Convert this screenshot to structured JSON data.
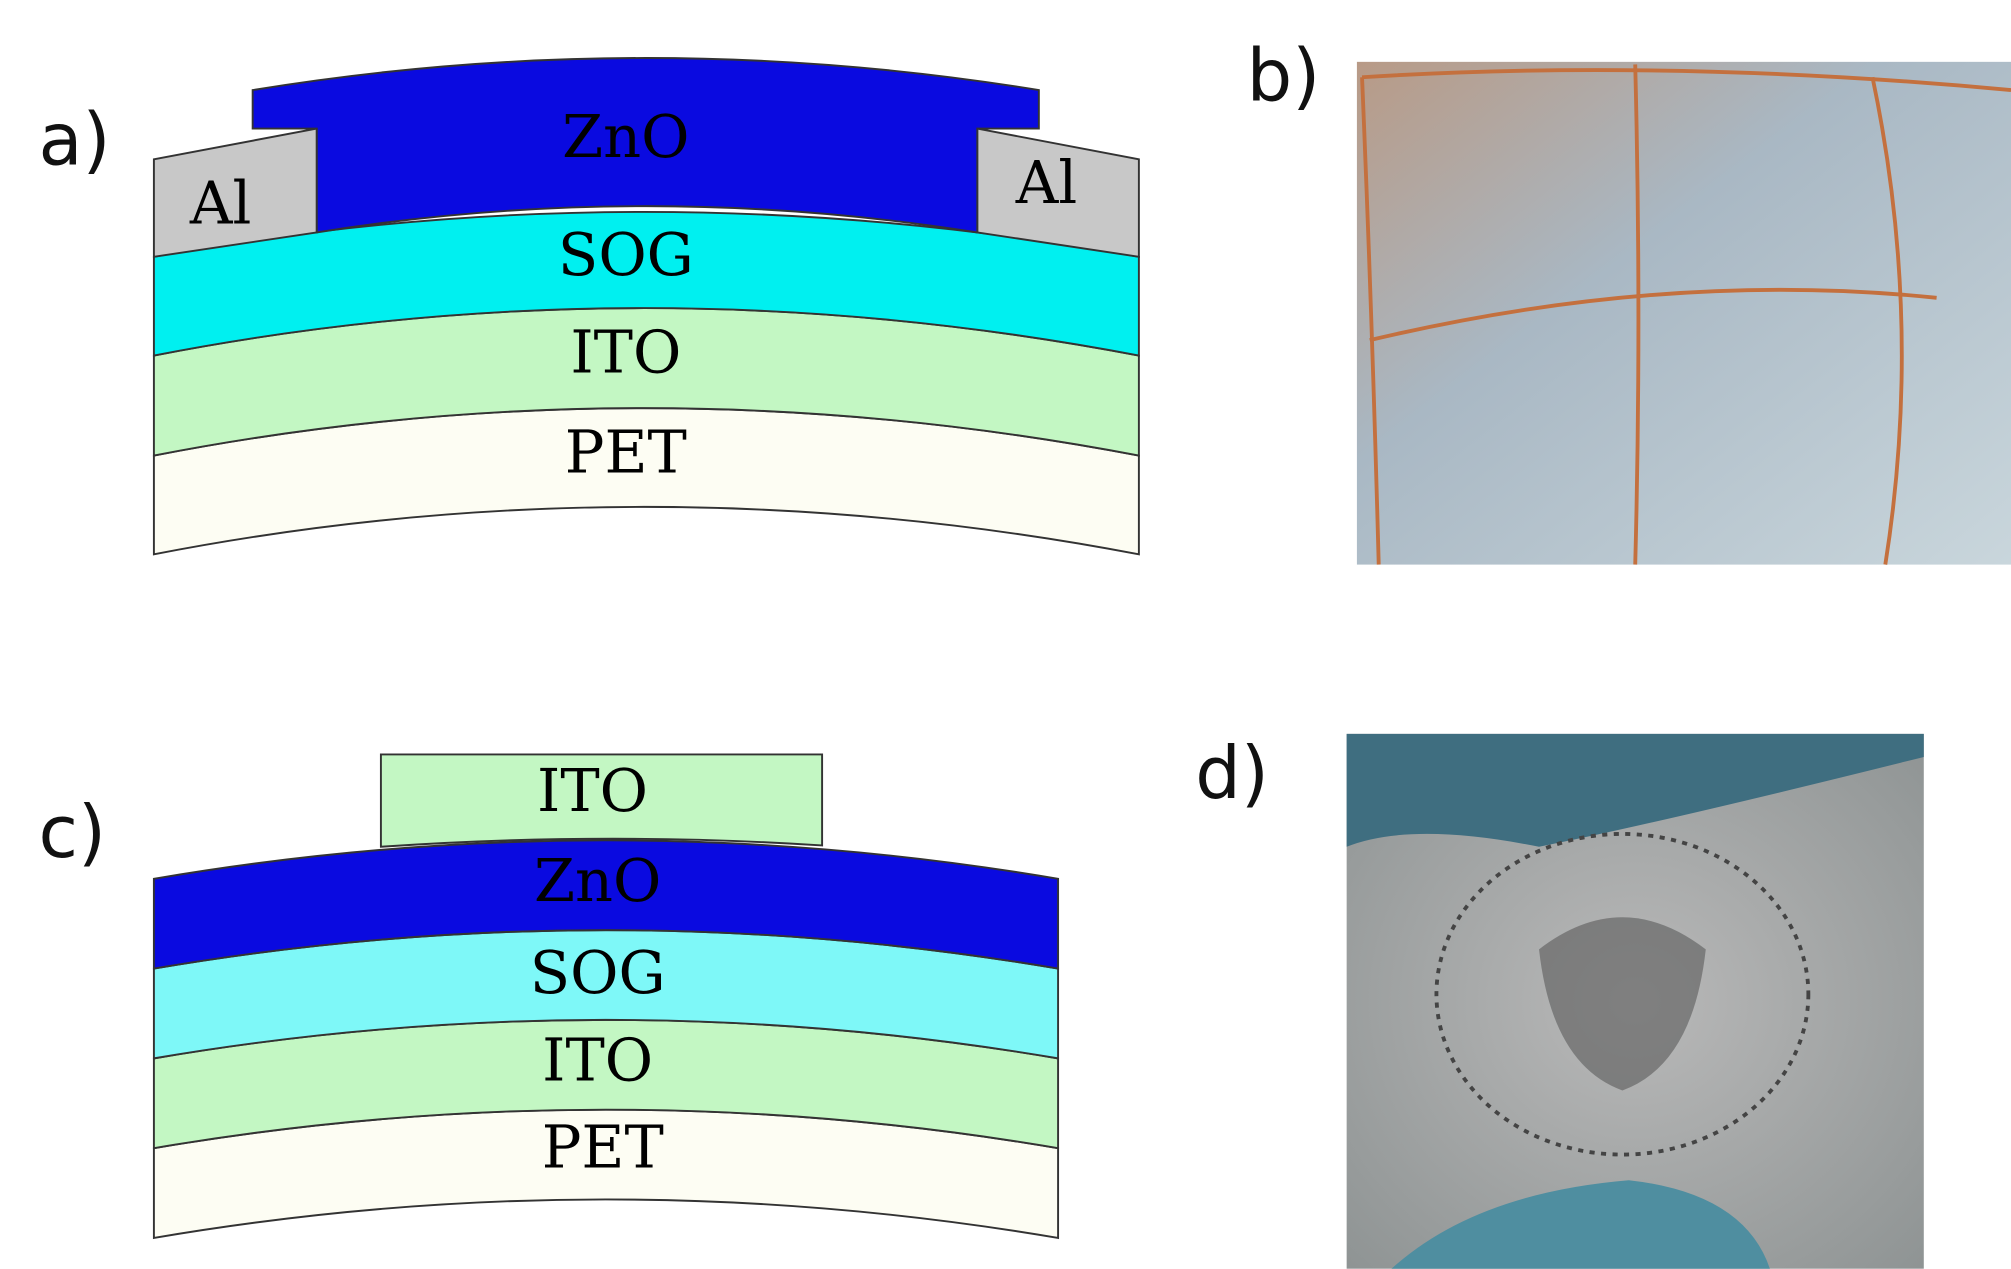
{
  "panels": [
    {
      "label": "a)",
      "layers": [
        "Al",
        "ZnO",
        "Al",
        "SOG",
        "ITO",
        "PET"
      ]
    },
    {
      "label": "b)"
    },
    {
      "label": "c)",
      "layers": [
        "ITO",
        "ZnO",
        "SOG",
        "ITO",
        "PET"
      ]
    },
    {
      "label": "d)"
    }
  ]
}
